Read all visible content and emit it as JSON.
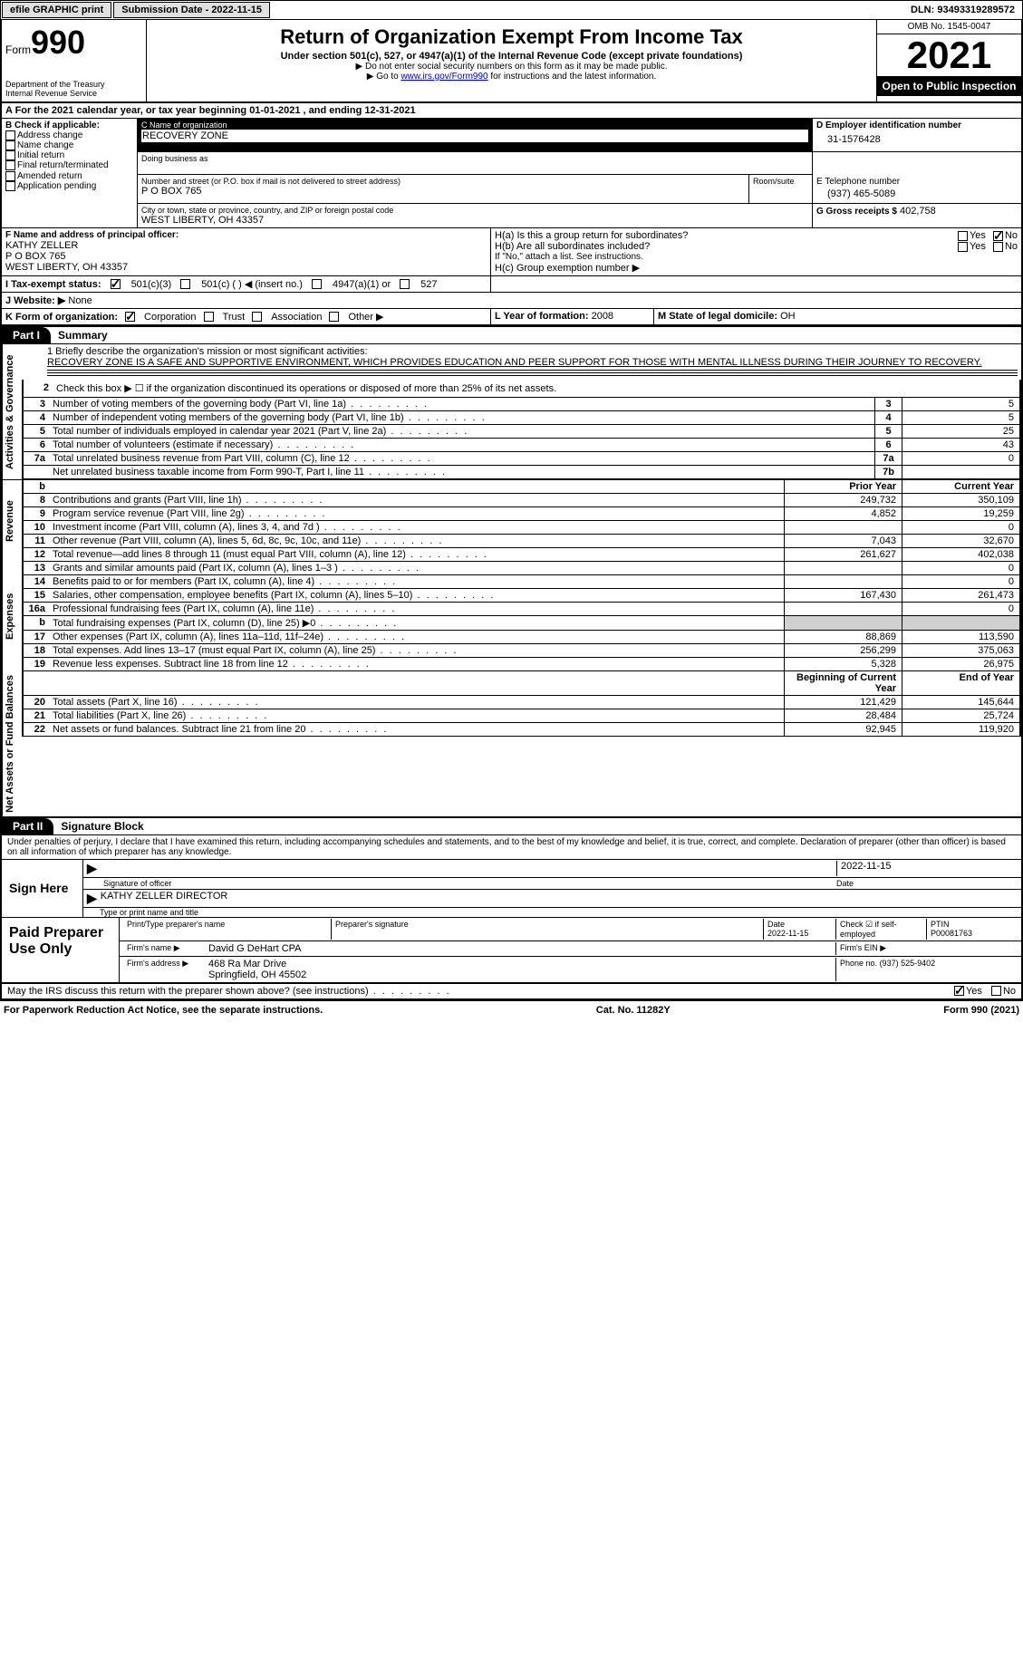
{
  "topbar": {
    "efile": "efile GRAPHIC print",
    "submission_label": "Submission Date - 2022-11-15",
    "dln": "DLN: 93493319289572"
  },
  "header": {
    "form_word": "Form",
    "form_num": "990",
    "dept": "Department of the Treasury",
    "irs": "Internal Revenue Service",
    "title": "Return of Organization Exempt From Income Tax",
    "sub": "Under section 501(c), 527, or 4947(a)(1) of the Internal Revenue Code (except private foundations)",
    "note1": "▶ Do not enter social security numbers on this form as it may be made public.",
    "note2": "▶ Go to ",
    "note2_link": "www.irs.gov/Form990",
    "note2_tail": " for instructions and the latest information.",
    "omb": "OMB No. 1545-0047",
    "year": "2021",
    "inspect": "Open to Public Inspection"
  },
  "line_a": "A For the 2021 calendar year, or tax year beginning 01-01-2021    , and ending 12-31-2021",
  "box_b": {
    "label": "B Check if applicable:",
    "items": [
      "Address change",
      "Name change",
      "Initial return",
      "Final return/terminated",
      "Amended return",
      "Application pending"
    ]
  },
  "box_c": {
    "name_label": "C Name of organization",
    "name": "RECOVERY ZONE",
    "dba_label": "Doing business as",
    "addr_label": "Number and street (or P.O. box if mail is not delivered to street address)",
    "addr": "P O BOX 765",
    "room_label": "Room/suite",
    "city_label": "City or town, state or province, country, and ZIP or foreign postal code",
    "city": "WEST LIBERTY, OH  43357"
  },
  "box_d": {
    "label": "D Employer identification number",
    "value": "31-1576428"
  },
  "box_e": {
    "label": "E Telephone number",
    "value": "(937) 465-5089"
  },
  "box_g": {
    "label": "G Gross receipts $",
    "value": "402,758"
  },
  "box_f": {
    "label": "F Name and address of principal officer:",
    "name": "KATHY ZELLER",
    "addr": "P O BOX 765",
    "city": "WEST LIBERTY, OH  43357"
  },
  "box_h": {
    "ha": "H(a)  Is this a group return for subordinates?",
    "hb": "H(b)  Are all subordinates included?",
    "hb_note": "If \"No,\" attach a list. See instructions.",
    "hc": "H(c)  Group exemption number ▶",
    "yes": "Yes",
    "no": "No"
  },
  "box_i": {
    "label": "I Tax-exempt status:",
    "opt1": "501(c)(3)",
    "opt2": "501(c) (  ) ◀ (insert no.)",
    "opt3": "4947(a)(1) or",
    "opt4": "527"
  },
  "box_j": {
    "label": "J Website: ▶",
    "value": "None"
  },
  "box_k": {
    "label": "K Form of organization:",
    "opts": [
      "Corporation",
      "Trust",
      "Association",
      "Other ▶"
    ]
  },
  "box_l": {
    "label": "L Year of formation:",
    "value": "2008"
  },
  "box_m": {
    "label": "M State of legal domicile:",
    "value": "OH"
  },
  "part1": {
    "tab": "Part I",
    "title": "Summary"
  },
  "summary": {
    "q1_label": "1   Briefly describe the organization's mission or most significant activities:",
    "q1_text": "RECOVERY ZONE IS A SAFE AND SUPPORTIVE ENVIRONMENT, WHICH PROVIDES EDUCATION AND PEER SUPPORT FOR THOSE WITH MENTAL ILLNESS DURING THEIR JOURNEY TO RECOVERY.",
    "q2": "Check this box ▶ ☐ if the organization discontinued its operations or disposed of more than 25% of its net assets.",
    "sidelabels": {
      "ag": "Activities & Governance",
      "rev": "Revenue",
      "exp": "Expenses",
      "na": "Net Assets or Fund Balances"
    },
    "lines": [
      {
        "n": "3",
        "d": "Number of voting members of the governing body (Part VI, line 1a)",
        "box": "3",
        "v": "5"
      },
      {
        "n": "4",
        "d": "Number of independent voting members of the governing body (Part VI, line 1b)",
        "box": "4",
        "v": "5"
      },
      {
        "n": "5",
        "d": "Total number of individuals employed in calendar year 2021 (Part V, line 2a)",
        "box": "5",
        "v": "25"
      },
      {
        "n": "6",
        "d": "Total number of volunteers (estimate if necessary)",
        "box": "6",
        "v": "43"
      },
      {
        "n": "7a",
        "d": "Total unrelated business revenue from Part VIII, column (C), line 12",
        "box": "7a",
        "v": "0"
      },
      {
        "n": "",
        "d": "Net unrelated business taxable income from Form 990-T, Part I, line 11",
        "box": "7b",
        "v": ""
      }
    ],
    "col_prior": "Prior Year",
    "col_current": "Current Year",
    "rev_lines": [
      {
        "n": "8",
        "d": "Contributions and grants (Part VIII, line 1h)",
        "p": "249,732",
        "c": "350,109"
      },
      {
        "n": "9",
        "d": "Program service revenue (Part VIII, line 2g)",
        "p": "4,852",
        "c": "19,259"
      },
      {
        "n": "10",
        "d": "Investment income (Part VIII, column (A), lines 3, 4, and 7d )",
        "p": "",
        "c": "0"
      },
      {
        "n": "11",
        "d": "Other revenue (Part VIII, column (A), lines 5, 6d, 8c, 9c, 10c, and 11e)",
        "p": "7,043",
        "c": "32,670"
      },
      {
        "n": "12",
        "d": "Total revenue—add lines 8 through 11 (must equal Part VIII, column (A), line 12)",
        "p": "261,627",
        "c": "402,038"
      }
    ],
    "exp_lines": [
      {
        "n": "13",
        "d": "Grants and similar amounts paid (Part IX, column (A), lines 1–3 )",
        "p": "",
        "c": "0"
      },
      {
        "n": "14",
        "d": "Benefits paid to or for members (Part IX, column (A), line 4)",
        "p": "",
        "c": "0"
      },
      {
        "n": "15",
        "d": "Salaries, other compensation, employee benefits (Part IX, column (A), lines 5–10)",
        "p": "167,430",
        "c": "261,473"
      },
      {
        "n": "16a",
        "d": "Professional fundraising fees (Part IX, column (A), line 11e)",
        "p": "",
        "c": "0"
      },
      {
        "n": "b",
        "d": "Total fundraising expenses (Part IX, column (D), line 25) ▶0",
        "p": "shade",
        "c": "shade"
      },
      {
        "n": "17",
        "d": "Other expenses (Part IX, column (A), lines 11a–11d, 11f–24e)",
        "p": "88,869",
        "c": "113,590"
      },
      {
        "n": "18",
        "d": "Total expenses. Add lines 13–17 (must equal Part IX, column (A), line 25)",
        "p": "256,299",
        "c": "375,063"
      },
      {
        "n": "19",
        "d": "Revenue less expenses. Subtract line 18 from line 12",
        "p": "5,328",
        "c": "26,975"
      }
    ],
    "col_begin": "Beginning of Current Year",
    "col_end": "End of Year",
    "na_lines": [
      {
        "n": "20",
        "d": "Total assets (Part X, line 16)",
        "p": "121,429",
        "c": "145,644"
      },
      {
        "n": "21",
        "d": "Total liabilities (Part X, line 26)",
        "p": "28,484",
        "c": "25,724"
      },
      {
        "n": "22",
        "d": "Net assets or fund balances. Subtract line 21 from line 20",
        "p": "92,945",
        "c": "119,920"
      }
    ]
  },
  "part2": {
    "tab": "Part II",
    "title": "Signature Block"
  },
  "sig": {
    "decl": "Under penalties of perjury, I declare that I have examined this return, including accompanying schedules and statements, and to the best of my knowledge and belief, it is true, correct, and complete. Declaration of preparer (other than officer) is based on all information of which preparer has any knowledge.",
    "sign_here": "Sign Here",
    "sig_officer": "Signature of officer",
    "sig_date": "2022-11-15",
    "date_label": "Date",
    "name_title": "KATHY ZELLER  DIRECTOR",
    "name_label": "Type or print name and title",
    "paid": "Paid Preparer Use Only",
    "prep_name_label": "Print/Type preparer's name",
    "prep_sig_label": "Preparer's signature",
    "prep_date_label": "Date",
    "prep_date": "2022-11-15",
    "check_se": "Check ☑ if self-employed",
    "ptin_label": "PTIN",
    "ptin": "P00081763",
    "firm_name_label": "Firm's name    ▶",
    "firm_name": "David G DeHart CPA",
    "firm_ein_label": "Firm's EIN ▶",
    "firm_addr_label": "Firm's address ▶",
    "firm_addr": "468 Ra Mar Drive",
    "firm_city": "Springfield, OH  45502",
    "phone_label": "Phone no.",
    "phone": "(937) 525-9402",
    "discuss": "May the IRS discuss this return with the preparer shown above? (see instructions)",
    "yes": "Yes",
    "no": "No"
  },
  "footer": {
    "pra": "For Paperwork Reduction Act Notice, see the separate instructions.",
    "cat": "Cat. No. 11282Y",
    "form": "Form 990 (2021)"
  }
}
